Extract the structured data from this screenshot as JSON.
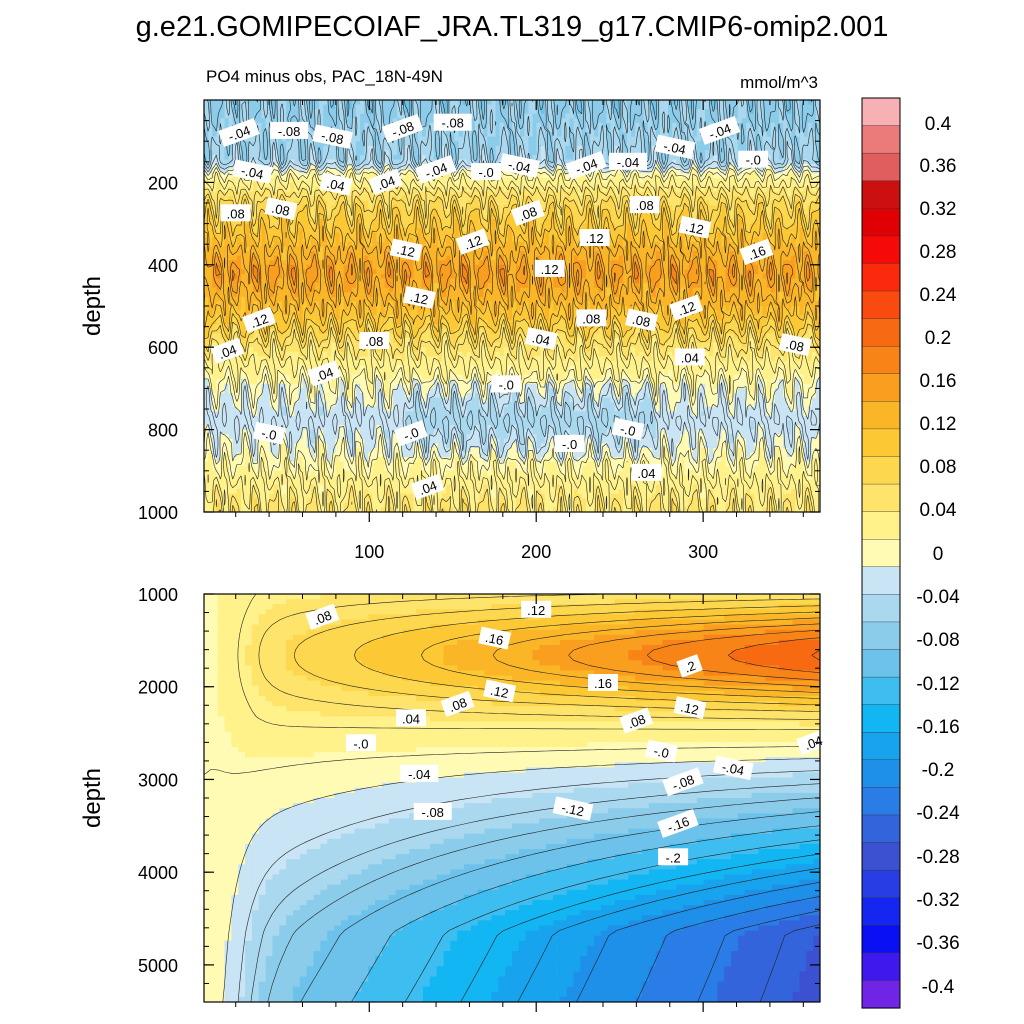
{
  "title": "g.e21.GOMIPECOIAF_JRA.TL319_g17.CMIP6-omip2.001",
  "colors": {
    "neg": [
      "#c8e4f5",
      "#a9d8ef",
      "#8ccceb",
      "#6cc2ea",
      "#3ebdf0",
      "#12b6f2",
      "#18a3ee",
      "#1e90ea",
      "#2a7de6",
      "#3464dc",
      "#3c50d2",
      "#283ee4",
      "#1426f0",
      "#0a10f4",
      "#3f18ee",
      "#7024e6"
    ],
    "pos": [
      "#fffbb4",
      "#fff28a",
      "#fee46a",
      "#fdd84e",
      "#fcc834",
      "#fbb628",
      "#fa9e20",
      "#f88418",
      "#f86a12",
      "#fa4a10",
      "#fb2a0c",
      "#f50a08",
      "#e00004",
      "#cc1010",
      "#e05e5e",
      "#eb7a7a",
      "#f7b0b4"
    ]
  },
  "chart_data": [
    {
      "type": "heatmap",
      "panel": "upper",
      "title_left": "PO4 minus obs, PAC_18N-49N",
      "title_right": "mmol/m^3",
      "xlabel": "",
      "ylabel": "depth",
      "xlim": [
        1,
        370
      ],
      "ylim": [
        1000,
        0
      ],
      "xticks": [
        100,
        200,
        300
      ],
      "yticks": [
        200,
        400,
        600,
        800,
        1000
      ],
      "contour_interval": 0.02,
      "profile": [
        {
          "depth": 0,
          "value": -0.06
        },
        {
          "depth": 150,
          "value": -0.04
        },
        {
          "depth": 180,
          "value": 0.02
        },
        {
          "depth": 250,
          "value": 0.08
        },
        {
          "depth": 330,
          "value": 0.12
        },
        {
          "depth": 420,
          "value": 0.16
        },
        {
          "depth": 520,
          "value": 0.12
        },
        {
          "depth": 600,
          "value": 0.06
        },
        {
          "depth": 680,
          "value": 0.02
        },
        {
          "depth": 780,
          "value": -0.01
        },
        {
          "depth": 850,
          "value": 0.01
        },
        {
          "depth": 1000,
          "value": 0.06
        }
      ],
      "contour_labels": [
        {
          "x": 22,
          "depth": 80,
          "text": "-.04"
        },
        {
          "x": 52,
          "depth": 75,
          "text": "-.08"
        },
        {
          "x": 78,
          "depth": 90,
          "text": "-.08"
        },
        {
          "x": 120,
          "depth": 70,
          "text": "-.08"
        },
        {
          "x": 150,
          "depth": 55,
          "text": "-.08"
        },
        {
          "x": 30,
          "depth": 175,
          "text": "-.04"
        },
        {
          "x": 140,
          "depth": 170,
          "text": "-.04"
        },
        {
          "x": 170,
          "depth": 175,
          "text": "-.0"
        },
        {
          "x": 190,
          "depth": 160,
          "text": "-.04"
        },
        {
          "x": 230,
          "depth": 160,
          "text": "-.04"
        },
        {
          "x": 255,
          "depth": 150,
          "text": "-.04"
        },
        {
          "x": 283,
          "depth": 115,
          "text": "-.04"
        },
        {
          "x": 310,
          "depth": 75,
          "text": "-.04"
        },
        {
          "x": 330,
          "depth": 145,
          "text": "-.0"
        },
        {
          "x": 80,
          "depth": 205,
          "text": ".04"
        },
        {
          "x": 110,
          "depth": 200,
          "text": ".04"
        },
        {
          "x": 20,
          "depth": 275,
          "text": ".08"
        },
        {
          "x": 47,
          "depth": 265,
          "text": ".08"
        },
        {
          "x": 195,
          "depth": 275,
          "text": ".08"
        },
        {
          "x": 265,
          "depth": 255,
          "text": ".08"
        },
        {
          "x": 122,
          "depth": 365,
          "text": ".12"
        },
        {
          "x": 162,
          "depth": 345,
          "text": ".12"
        },
        {
          "x": 235,
          "depth": 335,
          "text": ".12"
        },
        {
          "x": 295,
          "depth": 310,
          "text": ".12"
        },
        {
          "x": 332,
          "depth": 370,
          "text": ".16"
        },
        {
          "x": 208,
          "depth": 410,
          "text": ".12"
        },
        {
          "x": 130,
          "depth": 480,
          "text": ".12"
        },
        {
          "x": 34,
          "depth": 535,
          "text": ".12"
        },
        {
          "x": 233,
          "depth": 530,
          "text": ".08"
        },
        {
          "x": 263,
          "depth": 535,
          "text": ".08"
        },
        {
          "x": 290,
          "depth": 505,
          "text": ".12"
        },
        {
          "x": 103,
          "depth": 585,
          "text": ".08"
        },
        {
          "x": 203,
          "depth": 580,
          "text": ".04"
        },
        {
          "x": 15,
          "depth": 610,
          "text": ".04"
        },
        {
          "x": 292,
          "depth": 625,
          "text": ".04"
        },
        {
          "x": 355,
          "depth": 595,
          "text": ".08"
        },
        {
          "x": 73,
          "depth": 665,
          "text": ".04"
        },
        {
          "x": 182,
          "depth": 690,
          "text": "-.0"
        },
        {
          "x": 40,
          "depth": 810,
          "text": "-.0"
        },
        {
          "x": 125,
          "depth": 810,
          "text": "-.0"
        },
        {
          "x": 220,
          "depth": 835,
          "text": "-.0"
        },
        {
          "x": 255,
          "depth": 800,
          "text": "-.0"
        },
        {
          "x": 135,
          "depth": 940,
          "text": ".04"
        },
        {
          "x": 266,
          "depth": 905,
          "text": ".04"
        }
      ]
    },
    {
      "type": "heatmap",
      "panel": "lower",
      "xlabel": "",
      "ylabel": "depth",
      "xlim": [
        1,
        370
      ],
      "ylim": [
        5400,
        1000
      ],
      "yticks": [
        1000,
        2000,
        3000,
        4000,
        5000
      ],
      "contour_interval": 0.02,
      "contour_labels": [
        {
          "x": 72,
          "depth": 1250,
          "text": ".08"
        },
        {
          "x": 200,
          "depth": 1170,
          "text": ".12"
        },
        {
          "x": 175,
          "depth": 1480,
          "text": ".16"
        },
        {
          "x": 292,
          "depth": 1780,
          "text": ".2"
        },
        {
          "x": 240,
          "depth": 1960,
          "text": ".16"
        },
        {
          "x": 178,
          "depth": 2050,
          "text": ".12"
        },
        {
          "x": 153,
          "depth": 2190,
          "text": ".08"
        },
        {
          "x": 125,
          "depth": 2340,
          "text": ".04"
        },
        {
          "x": 292,
          "depth": 2230,
          "text": ".12"
        },
        {
          "x": 260,
          "depth": 2370,
          "text": ".08"
        },
        {
          "x": 95,
          "depth": 2610,
          "text": "-.0"
        },
        {
          "x": 275,
          "depth": 2700,
          "text": "-.0"
        },
        {
          "x": 366,
          "depth": 2600,
          "text": ".04"
        },
        {
          "x": 130,
          "depth": 2940,
          "text": "-.04"
        },
        {
          "x": 318,
          "depth": 2880,
          "text": "-.04"
        },
        {
          "x": 288,
          "depth": 3030,
          "text": "-.08"
        },
        {
          "x": 138,
          "depth": 3350,
          "text": "-.08"
        },
        {
          "x": 222,
          "depth": 3320,
          "text": "-.12"
        },
        {
          "x": 285,
          "depth": 3480,
          "text": "-.16"
        },
        {
          "x": 282,
          "depth": 3840,
          "text": "-.2"
        }
      ]
    }
  ],
  "colorbar": {
    "labels": [
      "0.4",
      "0.36",
      "0.32",
      "0.28",
      "0.24",
      "0.2",
      "0.16",
      "0.12",
      "0.08",
      "0.04",
      "0",
      "-0.04",
      "-0.08",
      "-0.12",
      "-0.16",
      "-0.2",
      "-0.24",
      "-0.28",
      "-0.32",
      "-0.36",
      "-0.4"
    ]
  }
}
